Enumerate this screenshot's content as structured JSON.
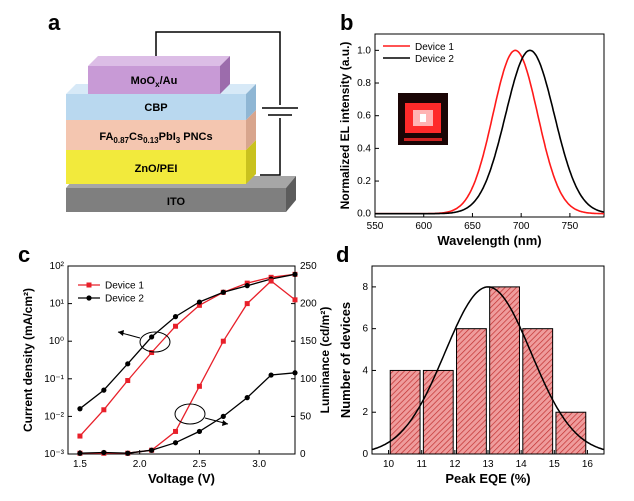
{
  "panels": {
    "a": "a",
    "b": "b",
    "c": "c",
    "d": "d"
  },
  "device_stack": {
    "layers": [
      {
        "name": "ITO",
        "color": "#7f7f7f"
      },
      {
        "name": "ZnO/PEI",
        "color": "#f2ea3c"
      },
      {
        "name": "FA0.87Cs0.13PbI3 PNCs",
        "color": "#f4c6b0"
      },
      {
        "name": "CBP",
        "color": "#b9d8ef"
      },
      {
        "name": "MoOx/Au",
        "color": "#c89ad6"
      }
    ],
    "label_parts": {
      "moox": "MoO",
      "moox_sub": "x",
      "moox_rest": "/Au",
      "fa": "FA",
      "fa_sub1": "0.87",
      "cs": "Cs",
      "cs_sub": "0.13",
      "pbi": "PbI",
      "pbi_sub": "3",
      "pncs": " PNCs"
    }
  },
  "chart_data": [
    {
      "panel": "b",
      "type": "line",
      "xlabel": "Wavelength (nm)",
      "ylabel": "Normalized EL intensity (a.u.)",
      "xlim": [
        550,
        785
      ],
      "ylim": [
        -0.02,
        1.1
      ],
      "xticks": [
        "550",
        "600",
        "650",
        "700",
        "750"
      ],
      "yticks": [
        "0.0",
        "0.2",
        "0.4",
        "0.6",
        "0.8",
        "1.0"
      ],
      "legend": "top-left",
      "series": [
        {
          "name": "Device 1",
          "color": "#ff1a1a",
          "peak": 694,
          "sigma_left": 23,
          "sigma_right": 23
        },
        {
          "name": "Device 2",
          "color": "#000000",
          "peak": 709,
          "sigma_left": 25,
          "sigma_right": 25
        }
      ]
    },
    {
      "panel": "c",
      "type": "line",
      "xlabel": "Voltage (V)",
      "ylabel": "Current density (mA/cm²)",
      "ylabel_right": "Luminance (cd/m²)",
      "x_ticks": [
        "1.5",
        "2.0",
        "2.5",
        "3.0"
      ],
      "y_left_log": true,
      "y_left_ticks": [
        "10⁻³",
        "10⁻²",
        "10⁻¹",
        "10⁰",
        "10¹",
        "10²"
      ],
      "y_right_ticks": [
        "0",
        "50",
        "100",
        "150",
        "200",
        "250"
      ],
      "legend": "top-left",
      "series": [
        {
          "name": "Device 1",
          "color": "#e8202a",
          "marker": "square",
          "axis": "left",
          "x": [
            1.5,
            1.7,
            1.9,
            2.1,
            2.3,
            2.5,
            2.7,
            2.9,
            3.1,
            3.3
          ],
          "y": [
            0.003,
            0.015,
            0.09,
            0.5,
            2.5,
            9,
            20,
            35,
            50,
            60
          ]
        },
        {
          "name": "Device 2",
          "color": "#000000",
          "marker": "circle",
          "axis": "left",
          "x": [
            1.5,
            1.7,
            1.9,
            2.1,
            2.3,
            2.5,
            2.7,
            2.9,
            3.1,
            3.3
          ],
          "y": [
            0.016,
            0.05,
            0.25,
            1.3,
            4.5,
            11,
            20,
            30,
            45,
            60
          ]
        },
        {
          "name": "Device 1",
          "color": "#e8202a",
          "marker": "square",
          "axis": "right",
          "x": [
            1.5,
            1.7,
            1.9,
            2.1,
            2.3,
            2.5,
            2.7,
            2.9,
            3.1,
            3.3
          ],
          "y": [
            1,
            1,
            1,
            5,
            30,
            90,
            150,
            200,
            230,
            205
          ]
        },
        {
          "name": "Device 2",
          "color": "#000000",
          "marker": "circle",
          "axis": "right",
          "x": [
            1.5,
            1.7,
            1.9,
            2.1,
            2.3,
            2.5,
            2.7,
            2.9,
            3.1,
            3.3
          ],
          "y": [
            1,
            2,
            1,
            5,
            15,
            30,
            50,
            75,
            105,
            108
          ]
        }
      ]
    },
    {
      "panel": "d",
      "type": "bar",
      "xlabel": "Peak EQE (%)",
      "ylabel": "Number of devices",
      "categories": [
        "10.5",
        "11.5",
        "12.5",
        "13.5",
        "14.5",
        "15.5"
      ],
      "values": [
        4,
        4,
        6,
        8,
        6,
        2
      ],
      "xticks": [
        "10",
        "11",
        "12",
        "13",
        "14",
        "15",
        "16"
      ],
      "yticks": [
        "0",
        "2",
        "4",
        "6",
        "8"
      ],
      "bar_color": "#e8a3a3",
      "fit": {
        "type": "gaussian",
        "mean": 13.0,
        "sigma": 1.3,
        "amp": 8.0
      }
    }
  ],
  "legend_c": [
    "Device 1",
    "Device 2"
  ],
  "legend_b": [
    "Device 1",
    "Device 2"
  ]
}
